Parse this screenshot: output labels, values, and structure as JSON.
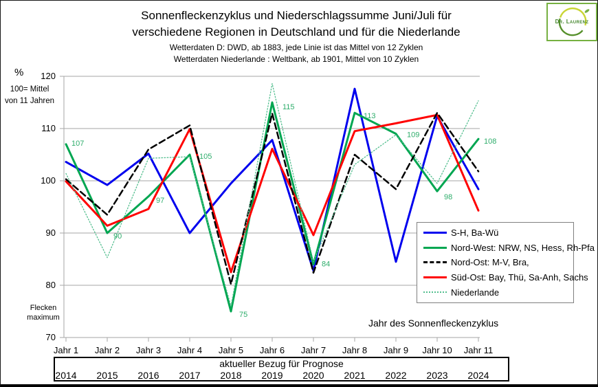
{
  "header": {
    "title_line1": "Sonnenfleckenzyklus und Niederschlagssumme Juni/Juli für",
    "title_line2": "verschiedene Regionen in Deutschland und für die Niederlande",
    "subtitle_line1": "Wetterdaten  D: DWD, ab 1883, jede Linie ist das Mittel von 12 Zyklen",
    "subtitle_line2": "Wetterdaten Niederlande : Weltbank, ab 1901, Mittel von 10 Zyklen"
  },
  "logo": {
    "text": "Dr. Laurenz",
    "border_color": "#76b041",
    "arc_green": "#56902b",
    "arc_yellow": "#c9d534"
  },
  "y_axis": {
    "unit": "%",
    "note_line1": "100= Mittel",
    "note_line2": "von 11 Jahren",
    "ticks": [
      120,
      110,
      100,
      90,
      80,
      70
    ]
  },
  "x_axis": {
    "title": "Jahr des Sonnenfleckenzyklus",
    "flecken_line1": "Flecken",
    "flecken_line2": "maximum"
  },
  "table": {
    "title": "aktueller Bezug für Prognose",
    "years": [
      "2014",
      "2015",
      "2016",
      "2017",
      "2018",
      "2019",
      "2020",
      "2021",
      "2022",
      "2023",
      "2024"
    ]
  },
  "chart_data": {
    "type": "line",
    "title": "Sonnenfleckenzyklus und Niederschlagssumme Juni/Juli für verschiedene Regionen in Deutschland und für die Niederlande",
    "xlabel": "Jahr des Sonnenfleckenzyklus",
    "ylabel": "% (100= Mittel von 11 Jahren)",
    "ylim": [
      70,
      120
    ],
    "grid": true,
    "legend_position": "overlay-right",
    "categories": [
      "Jahr 1",
      "Jahr 2",
      "Jahr 3",
      "Jahr 4",
      "Jahr 5",
      "Jahr 6",
      "Jahr 7",
      "Jahr 8",
      "Jahr 9",
      "Jahr 10",
      "Jahr 11"
    ],
    "grid_color": "#a6a6a6",
    "label_color": "#2ead6b",
    "series": [
      {
        "name": "S-H, Ba-Wü",
        "color": "#0000ee",
        "style": "solid",
        "width": 3,
        "values": [
          103.6,
          99.2,
          105.2,
          90.0,
          99.5,
          107.8,
          82.8,
          117.6,
          84.5,
          112.4,
          98.4
        ]
      },
      {
        "name": "Nord-West: NRW, NS, Hess, Rh-Pfa",
        "color": "#00a651",
        "style": "solid",
        "width": 3,
        "values": [
          107,
          90,
          97,
          105,
          75,
          115,
          84,
          113,
          109,
          98,
          108
        ],
        "labels": [
          "107",
          "90",
          "97",
          "105",
          "75",
          "115",
          "84",
          "113",
          "109",
          "98",
          "108"
        ]
      },
      {
        "name": "Nord-Ost: M-V, Bra,",
        "color": "#000000",
        "style": "dashed",
        "width": 2.5,
        "values": [
          100.3,
          93.5,
          106.0,
          110.6,
          80.2,
          112.9,
          82.4,
          105.0,
          98.4,
          113.0,
          101.8
        ]
      },
      {
        "name": "Süd-Ost: Bay, Thü, Sa-Anh, Sachs",
        "color": "#ff0000",
        "style": "solid",
        "width": 3,
        "values": [
          99.9,
          91.4,
          94.6,
          109.9,
          82.5,
          106.1,
          89.6,
          109.5,
          111.0,
          112.6,
          94.3
        ]
      },
      {
        "name": "Niederlande",
        "color": "#52be8e",
        "style": "dotted",
        "width": 1.3,
        "values": [
          101.4,
          85.3,
          104.3,
          104.6,
          76.0,
          118.6,
          84.5,
          103.1,
          108.8,
          99.5,
          115.3
        ]
      }
    ]
  }
}
